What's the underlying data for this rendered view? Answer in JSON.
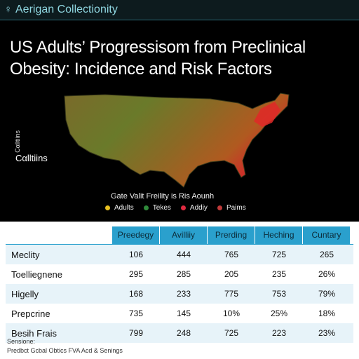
{
  "header": {
    "brand": "Aerigan Collectionity",
    "title": "US Adults’ Progressisom from Preclinical Obesity: Incidence and Risk Factors"
  },
  "map": {
    "side_vertical": "Cαlltiins",
    "side_label": "Cαlltiins",
    "caption": "Gate Valit Freility is Ris Aounh",
    "legend": [
      {
        "label": "Adults",
        "color": "#e8c020"
      },
      {
        "label": "Tekes",
        "color": "#2f8a3a"
      },
      {
        "label": "Addiy",
        "color": "#e02a40"
      },
      {
        "label": "Paims",
        "color": "#c03a3a"
      }
    ]
  },
  "table": {
    "columns": [
      "Preedegy",
      "Avilliiy",
      "Prerding",
      "Heching",
      "Cuntary"
    ],
    "rows": [
      [
        "Meclity",
        "106",
        "444",
        "765",
        "725",
        "265"
      ],
      [
        "Toelliegnene",
        "295",
        "285",
        "205",
        "235",
        "26%"
      ],
      [
        "Higelly",
        "168",
        "233",
        "775",
        "753",
        "79%"
      ],
      [
        "Prepcrine",
        "735",
        "145",
        "10%",
        "25%",
        "18%"
      ],
      [
        "Besih Frais",
        "799",
        "248",
        "725",
        "223",
        "23%"
      ]
    ]
  },
  "footer": {
    "label": "Sensione:",
    "source": "Predbct Gcbal Obtics FVA Acd & Senings"
  }
}
